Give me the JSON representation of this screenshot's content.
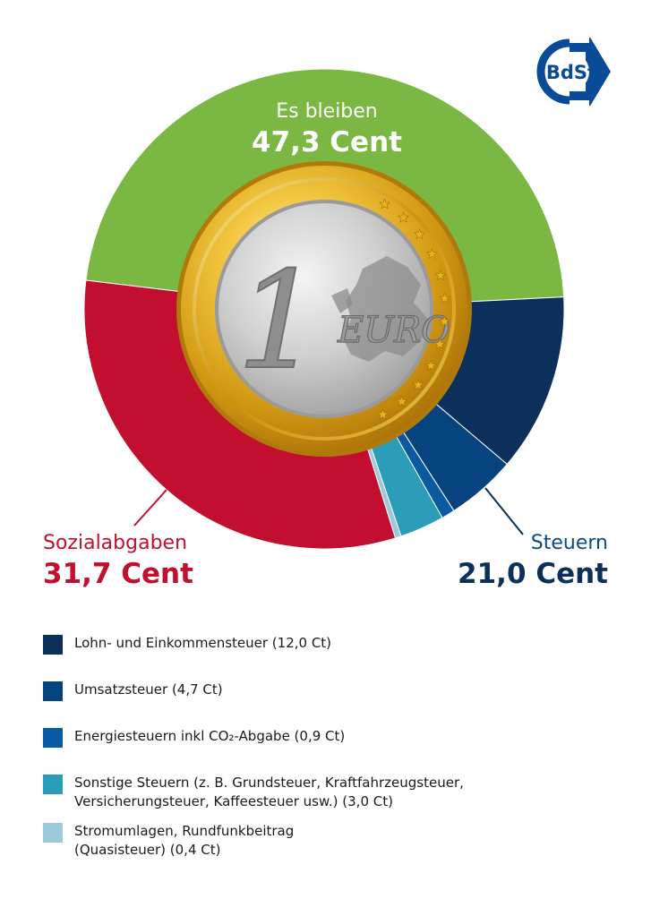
{
  "logo": {
    "text": "BdSt",
    "color": "#0a4b97"
  },
  "labels": {
    "remain": {
      "title": "Es bleiben",
      "value": "47,3 Cent"
    },
    "social": {
      "title": "Sozialabgaben",
      "value": "31,7 Cent"
    },
    "tax": {
      "title": "Steuern",
      "value": "21,0 Cent"
    }
  },
  "coin": {
    "numeral": "1",
    "currency": "EURO"
  },
  "chart_data": {
    "type": "pie",
    "unit": "Cent",
    "total": 100,
    "slices": [
      {
        "label": "Es bleiben",
        "value": 47.3,
        "color": "#7ab743"
      },
      {
        "label": "Lohn- und Einkommensteuer",
        "value": 12.0,
        "color": "#0c2f5c"
      },
      {
        "label": "Umsatzsteuer",
        "value": 4.7,
        "color": "#07437f"
      },
      {
        "label": "Energiesteuern inkl CO₂-Abgabe",
        "value": 0.9,
        "color": "#0a5aa3"
      },
      {
        "label": "Sonstige Steuern",
        "value": 3.0,
        "color": "#2c9db9"
      },
      {
        "label": "Stromumlagen, Rundfunkbeitrag",
        "value": 0.4,
        "color": "#9cc9dc"
      },
      {
        "label": "Sozialabgaben",
        "value": 31.7,
        "color": "#c20e2f"
      }
    ]
  },
  "legend": [
    {
      "lines": [
        "Lohn- und Einkommensteuer (12,0 Ct)"
      ],
      "color": "#0c2f5c"
    },
    {
      "lines": [
        "Umsatzsteuer (4,7 Ct)"
      ],
      "color": "#07437f"
    },
    {
      "lines": [
        "Energiesteuern inkl CO₂-Abgabe (0,9 Ct)"
      ],
      "color": "#0a5aa3"
    },
    {
      "lines": [
        "Sonstige Steuern (z. B. Grundsteuer, Kraftfahrzeugsteuer,",
        "Versicherungsteuer, Kaffeesteuer usw.) (3,0 Ct)"
      ],
      "color": "#2c9db9"
    },
    {
      "lines": [
        "Stromumlagen, Rundfunkbeitrag",
        "(Quasisteuer) (0,4 Ct)"
      ],
      "color": "#9cc9dc"
    }
  ]
}
